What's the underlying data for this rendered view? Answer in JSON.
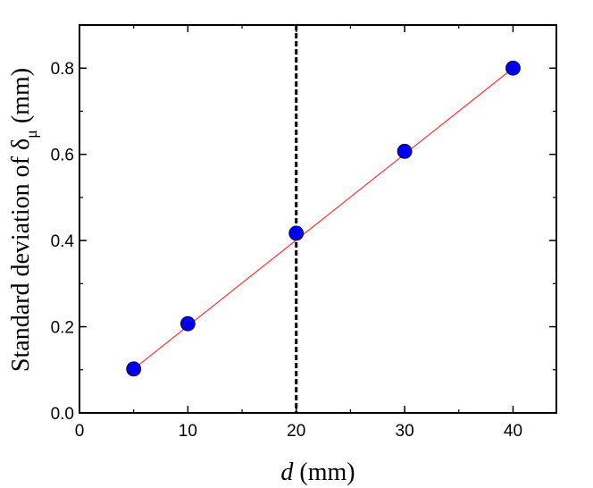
{
  "chart_data": {
    "type": "scatter",
    "xlabel_var": "d",
    "xlabel_unit": " (mm)",
    "ylabel_main": "Standard deviation of δ",
    "ylabel_sub": "μ",
    "ylabel_unit": " (mm)",
    "xlim": [
      0,
      44
    ],
    "ylim": [
      0,
      0.9
    ],
    "xticks": [
      0,
      10,
      20,
      30,
      40
    ],
    "xtick_labels": [
      "0",
      "10",
      "20",
      "30",
      "40"
    ],
    "yticks": [
      0.0,
      0.2,
      0.4,
      0.6,
      0.8
    ],
    "ytick_labels": [
      "0.0",
      "0.2",
      "0.4",
      "0.6",
      "0.8"
    ],
    "series": [
      {
        "x": [
          5,
          10,
          20,
          30,
          40
        ],
        "y": [
          0.102,
          0.207,
          0.417,
          0.607,
          0.8
        ],
        "marker_color": "#0000ee"
      }
    ],
    "fit_line": {
      "x": [
        5,
        40
      ],
      "y": [
        0.102,
        0.8
      ],
      "color": "#ff3333"
    },
    "vertical_reference": {
      "x": 20,
      "style": "dashed",
      "color": "#000000"
    },
    "grid": false
  }
}
